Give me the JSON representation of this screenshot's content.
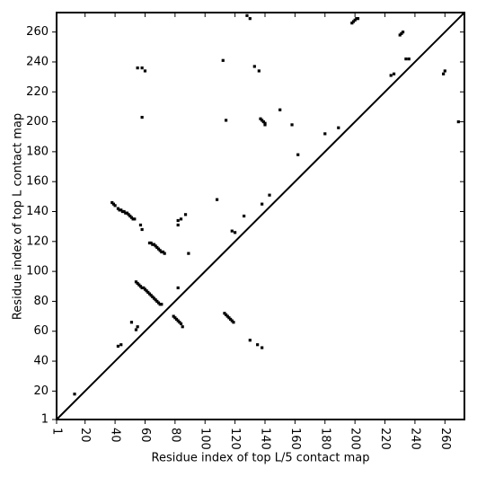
{
  "chart_data": {
    "type": "scatter",
    "x_label": "Residue index of top L/5 contact map",
    "y_label": "Residue index of top L contact map",
    "color": "#000000",
    "xlim": [
      1,
      273
    ],
    "ylim": [
      1,
      273
    ],
    "xticks": [
      1,
      20,
      40,
      60,
      80,
      100,
      120,
      140,
      160,
      180,
      200,
      220,
      240,
      260
    ],
    "yticks": [
      1,
      20,
      40,
      60,
      80,
      100,
      120,
      140,
      160,
      180,
      200,
      220,
      240,
      260
    ],
    "x": [
      38,
      39,
      40,
      42,
      43,
      44,
      45,
      46,
      47,
      48,
      49,
      50,
      51,
      52,
      53,
      63,
      64,
      65,
      66,
      67,
      68,
      69,
      70,
      71,
      72,
      73,
      54,
      55,
      56,
      57,
      58,
      59,
      60,
      61,
      62,
      63,
      64,
      65,
      66,
      67,
      68,
      69,
      70,
      71,
      79,
      80,
      81,
      82,
      83,
      84,
      85,
      113,
      114,
      115,
      116,
      117,
      118,
      119,
      137,
      138,
      139,
      140,
      140,
      198,
      199,
      200,
      201,
      202,
      230,
      231,
      232,
      13,
      42,
      44,
      51,
      54,
      55,
      55,
      58,
      58,
      60,
      58,
      57,
      82,
      82,
      84,
      82,
      87,
      89,
      108,
      114,
      118,
      120,
      126,
      130,
      135,
      138,
      138,
      143,
      150,
      158,
      162,
      180,
      189,
      224,
      226,
      234,
      236,
      259,
      260,
      269,
      130,
      133,
      136,
      112,
      128
    ],
    "y": [
      146,
      145,
      144,
      142,
      141,
      141,
      140,
      140,
      139,
      139,
      138,
      137,
      136,
      135,
      135,
      119,
      119,
      118,
      118,
      117,
      116,
      115,
      114,
      113,
      113,
      112,
      93,
      92,
      91,
      90,
      89,
      89,
      88,
      87,
      86,
      85,
      84,
      83,
      82,
      81,
      80,
      79,
      78,
      78,
      70,
      69,
      68,
      67,
      66,
      65,
      63,
      72,
      71,
      70,
      69,
      68,
      67,
      66,
      202,
      201,
      200,
      199,
      198,
      266,
      267,
      268,
      269,
      269,
      258,
      259,
      260,
      18,
      50,
      51,
      66,
      61,
      63,
      236,
      236,
      203,
      234,
      128,
      131,
      89,
      134,
      135,
      131,
      138,
      112,
      148,
      201,
      127,
      126,
      137,
      54,
      51,
      49,
      145,
      151,
      208,
      198,
      178,
      192,
      196,
      231,
      232,
      242,
      242,
      232,
      234,
      200,
      269,
      237,
      234,
      241,
      271
    ]
  }
}
